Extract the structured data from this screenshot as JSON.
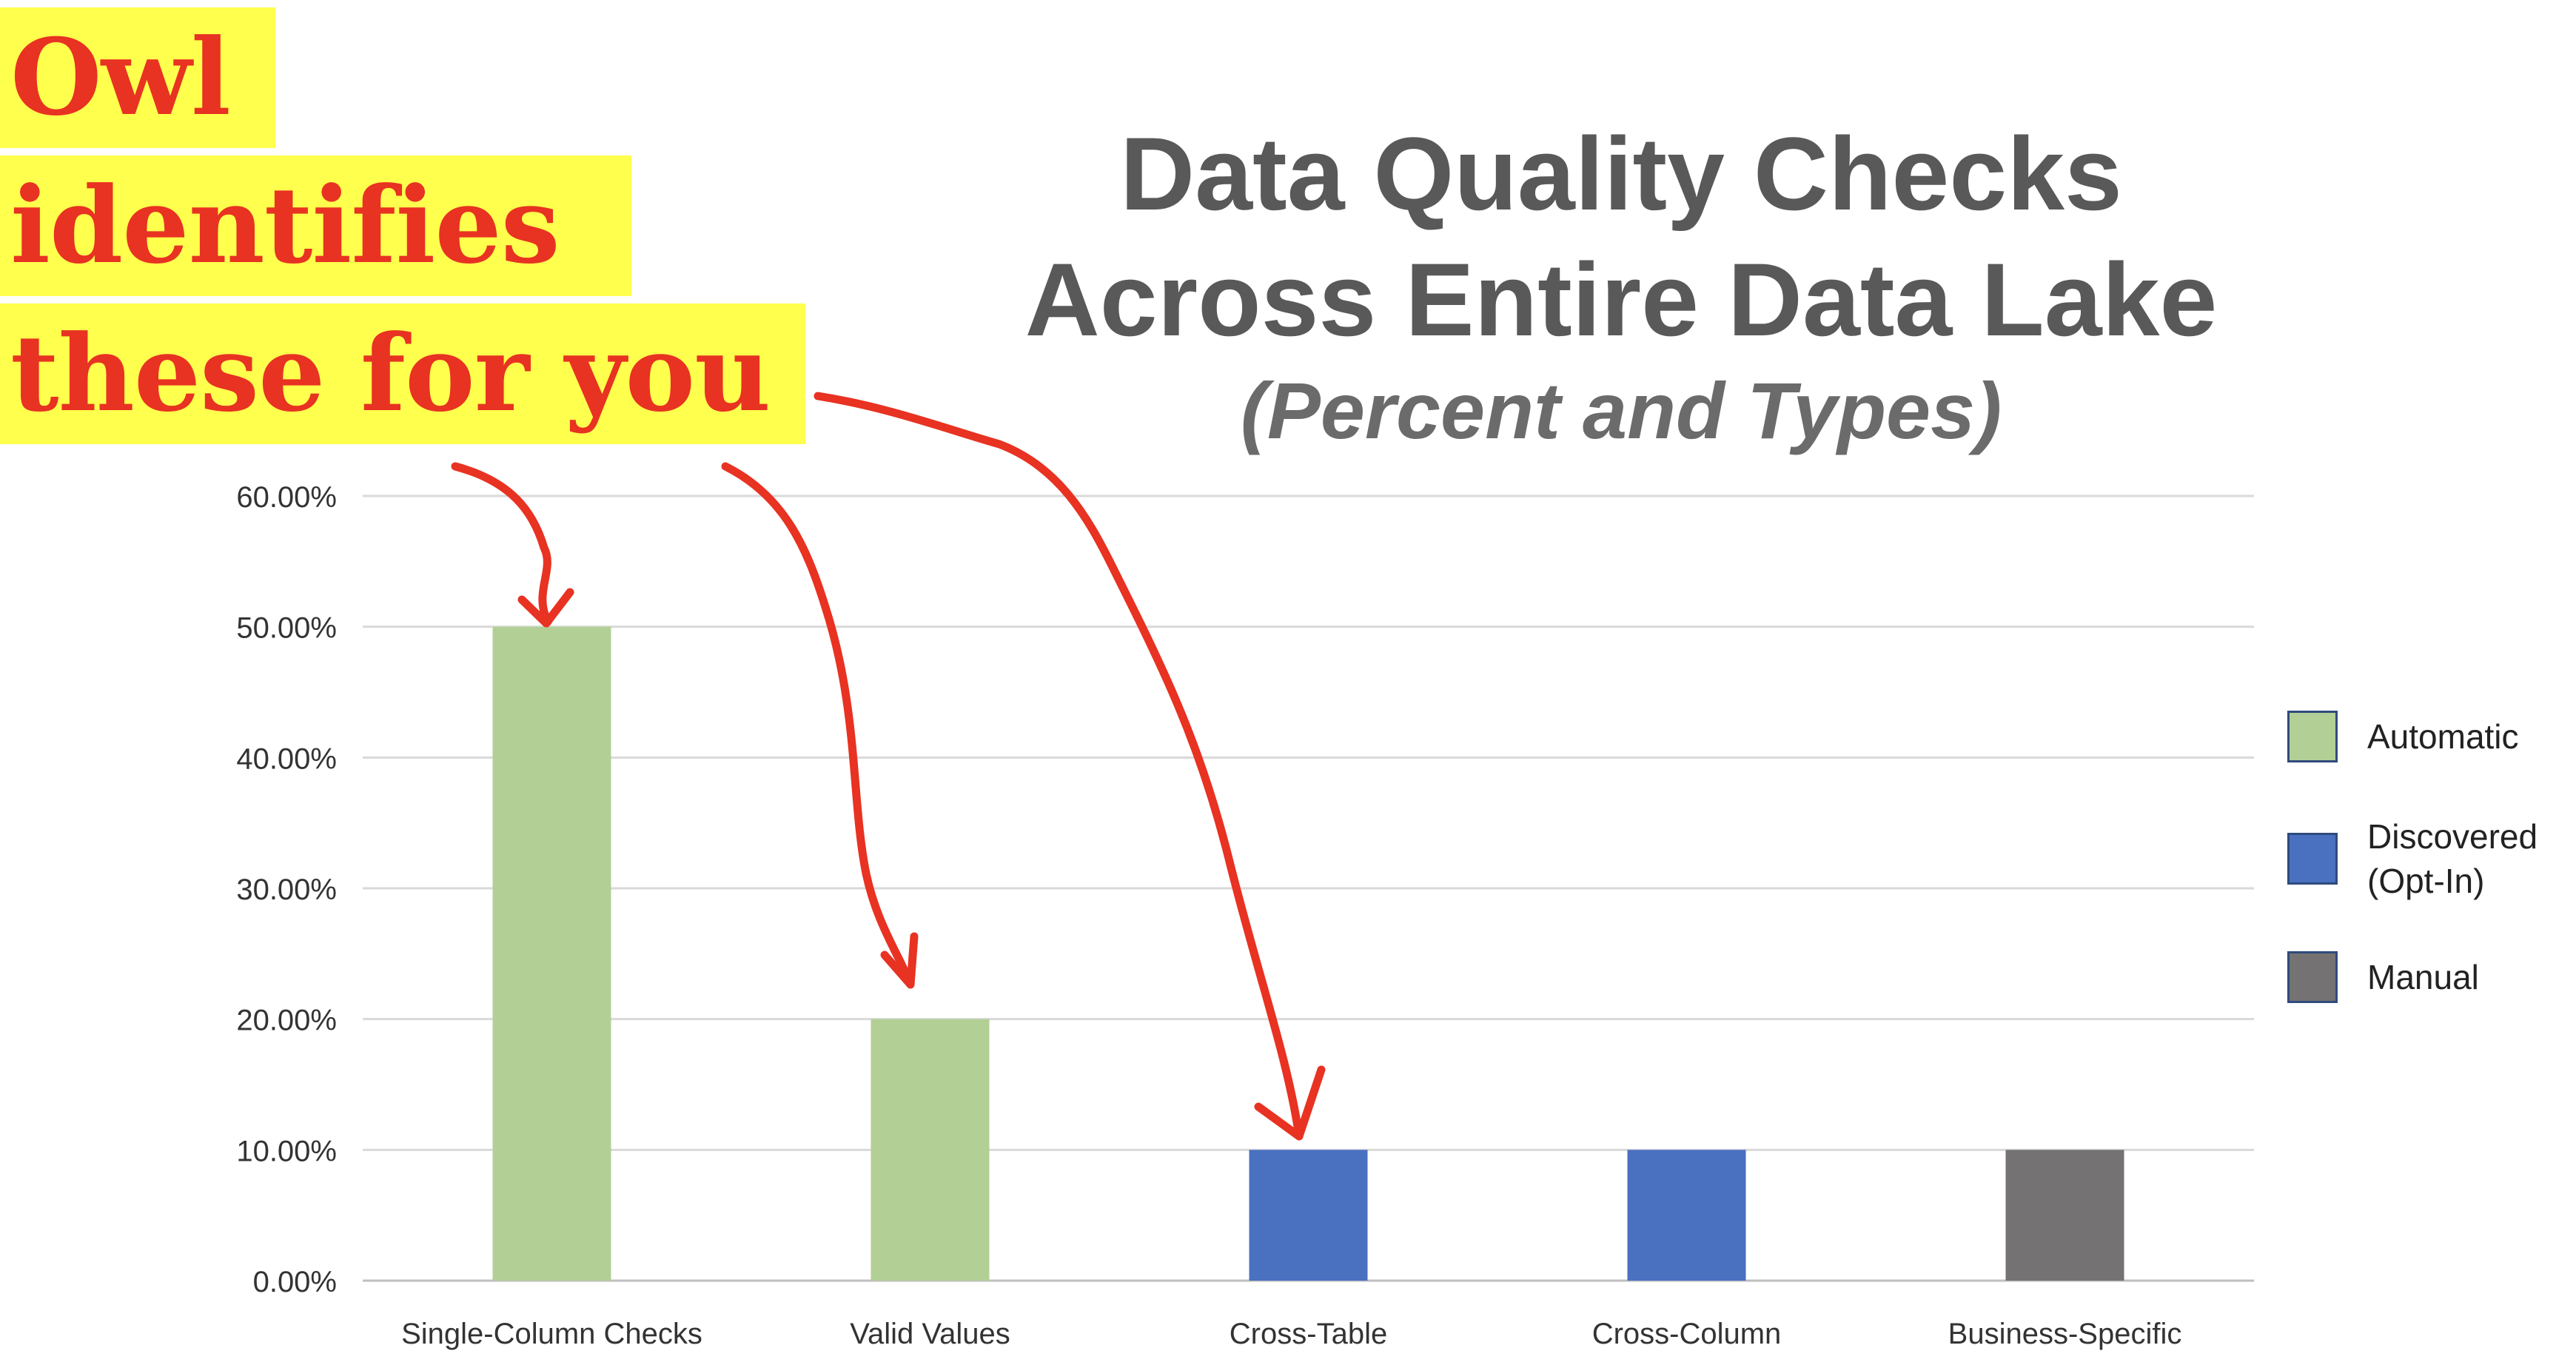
{
  "callout": {
    "line1": "Owl",
    "line2": "identifies",
    "line3": "these for you",
    "text_color": "#e83222",
    "highlight_color": "#ffff4d"
  },
  "chart_data": {
    "type": "bar",
    "title_line1": "Data Quality Checks",
    "title_line2": "Across Entire Data Lake",
    "subtitle": "(Percent and Types)",
    "xlabel": "",
    "ylabel": "",
    "ylim": [
      0,
      60
    ],
    "grid": true,
    "legend_position": "right",
    "y_ticks": [
      {
        "value": 0,
        "label": "0.00%"
      },
      {
        "value": 10,
        "label": "10.00%"
      },
      {
        "value": 20,
        "label": "20.00%"
      },
      {
        "value": 30,
        "label": "30.00%"
      },
      {
        "value": 40,
        "label": "40.00%"
      },
      {
        "value": 50,
        "label": "50.00%"
      },
      {
        "value": 60,
        "label": "60.00%"
      }
    ],
    "categories": [
      "Single-Column Checks",
      "Valid Values",
      "Cross-Table",
      "Cross-Column",
      "Business-Specific"
    ],
    "values": [
      50,
      20,
      10,
      10,
      10
    ],
    "bar_types": [
      "Automatic",
      "Automatic",
      "Discovered (Opt-In)",
      "Discovered (Opt-In)",
      "Manual"
    ],
    "legend": [
      {
        "label": "Automatic",
        "color": "#b2cf96"
      },
      {
        "label": "Discovered\n(Opt-In)",
        "color": "#4a70c0"
      },
      {
        "label": "Manual",
        "color": "#747272"
      }
    ],
    "annotation_arrows": {
      "from": "callout",
      "to_categories": [
        "Single-Column Checks",
        "Valid Values",
        "Cross-Table"
      ],
      "color": "#e83222"
    }
  }
}
